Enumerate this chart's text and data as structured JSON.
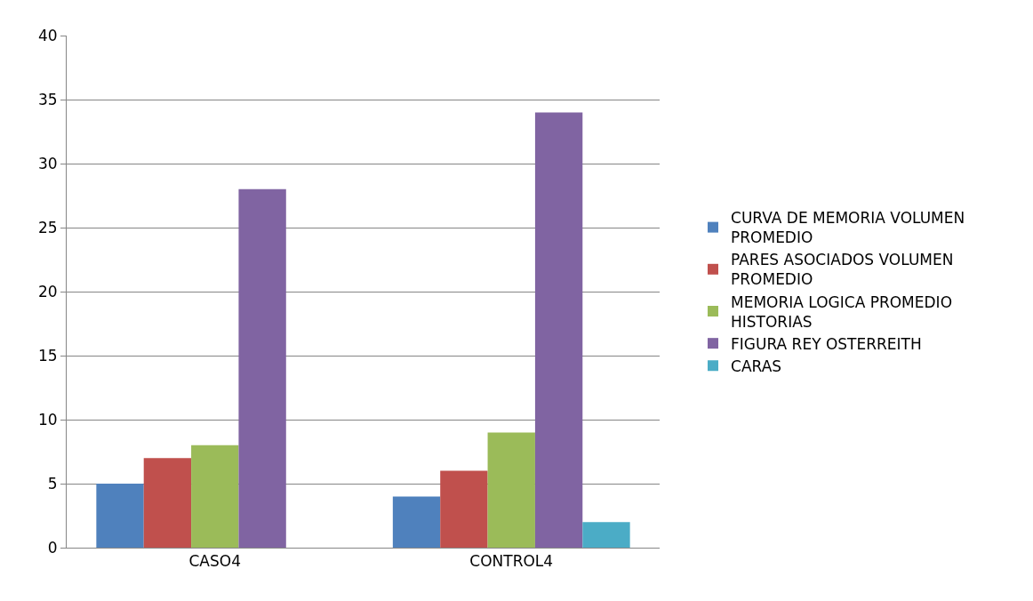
{
  "chart_data": {
    "type": "bar",
    "categories": [
      "CASO4",
      "CONTROL4"
    ],
    "series": [
      {
        "name": "CURVA DE MEMORIA VOLUMEN PROMEDIO",
        "color": "#4f81bd",
        "values": [
          5,
          4
        ]
      },
      {
        "name": "PARES ASOCIADOS VOLUMEN PROMEDIO",
        "color": "#c0504d",
        "values": [
          7,
          6
        ]
      },
      {
        "name": "MEMORIA LOGICA PROMEDIO HISTORIAS",
        "color": "#9bbb59",
        "values": [
          8,
          9
        ]
      },
      {
        "name": "FIGURA REY OSTERREITH",
        "color": "#8064a2",
        "values": [
          28,
          34
        ]
      },
      {
        "name": "CARAS",
        "color": "#4bacc6",
        "values": [
          null,
          2
        ]
      }
    ],
    "ylim": [
      0,
      40
    ],
    "yticks": [
      0,
      5,
      10,
      15,
      20,
      25,
      30,
      35,
      40
    ],
    "grid": "y",
    "legend": "right"
  }
}
